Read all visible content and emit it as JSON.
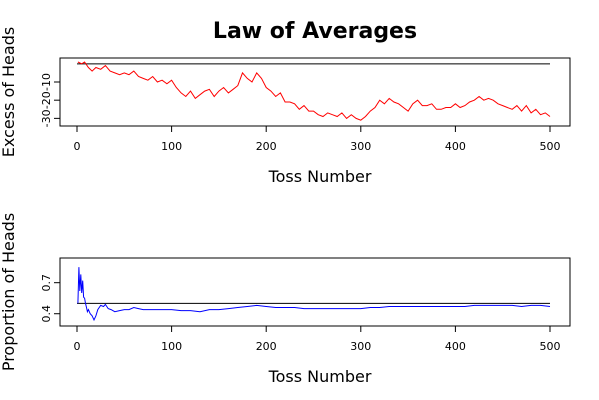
{
  "chart_data": {
    "title": "Law of Averages",
    "panels": [
      {
        "type": "line",
        "ylabel": "Excess of Heads",
        "xlabel": "Toss Number",
        "xlim": [
          0,
          500
        ],
        "ylim": [
          -32,
          1
        ],
        "xticks": [
          0,
          100,
          200,
          300,
          400,
          500
        ],
        "xtick_labels": [
          "0",
          "100",
          "200",
          "300",
          "400",
          "500"
        ],
        "yticks": [
          -30,
          -20,
          -10
        ],
        "ytick_labels": [
          "-30",
          "-20",
          "-10"
        ],
        "reference_line": {
          "y": 0,
          "color": "#000000"
        },
        "series": [
          {
            "color": "#ff0000",
            "x": [
              1,
              5,
              8,
              12,
              16,
              20,
              25,
              30,
              35,
              40,
              45,
              50,
              55,
              60,
              65,
              70,
              75,
              80,
              85,
              90,
              95,
              100,
              105,
              110,
              115,
              120,
              125,
              130,
              135,
              140,
              145,
              150,
              155,
              160,
              165,
              170,
              175,
              180,
              185,
              190,
              195,
              200,
              205,
              210,
              215,
              220,
              225,
              230,
              235,
              240,
              245,
              250,
              255,
              260,
              265,
              270,
              275,
              280,
              285,
              290,
              295,
              300,
              305,
              310,
              315,
              320,
              325,
              330,
              335,
              340,
              345,
              350,
              355,
              360,
              365,
              370,
              375,
              380,
              385,
              390,
              395,
              400,
              405,
              410,
              415,
              420,
              425,
              430,
              435,
              440,
              445,
              450,
              455,
              460,
              465,
              470,
              475,
              480,
              485,
              490,
              495,
              500
            ],
            "y": [
              1,
              0,
              1,
              -2,
              -4,
              -2,
              -3,
              -1,
              -4,
              -5,
              -6,
              -5,
              -6,
              -4,
              -7,
              -8,
              -9,
              -7,
              -10,
              -9,
              -11,
              -9,
              -13,
              -16,
              -18,
              -15,
              -19,
              -17,
              -15,
              -14,
              -18,
              -15,
              -13,
              -16,
              -14,
              -12,
              -5,
              -8,
              -10,
              -5,
              -8,
              -13,
              -15,
              -18,
              -16,
              -21,
              -21,
              -22,
              -25,
              -23,
              -26,
              -26,
              -28,
              -29,
              -27,
              -28,
              -29,
              -27,
              -30,
              -28,
              -30,
              -31,
              -29,
              -26,
              -24,
              -20,
              -22,
              -19,
              -21,
              -22,
              -24,
              -26,
              -22,
              -20,
              -23,
              -23,
              -22,
              -25,
              -25,
              -24,
              -24,
              -22,
              -24,
              -23,
              -21,
              -20,
              -18,
              -20,
              -19,
              -20,
              -22,
              -23,
              -24,
              -25,
              -23,
              -26,
              -23,
              -27,
              -25,
              -28,
              -27,
              -29
            ]
          }
        ]
      },
      {
        "type": "line",
        "ylabel": "Proportion of Heads",
        "xlabel": "Toss Number",
        "xlim": [
          0,
          500
        ],
        "ylim": [
          0.32,
          0.9
        ],
        "xticks": [
          0,
          100,
          200,
          300,
          400,
          500
        ],
        "xtick_labels": [
          "0",
          "100",
          "200",
          "300",
          "400",
          "500"
        ],
        "yticks": [
          0.4,
          0.7
        ],
        "ytick_labels": [
          "0.4",
          "0.7"
        ],
        "reference_line": {
          "y": 0.5,
          "color": "#000000"
        },
        "series": [
          {
            "color": "#0000ff",
            "x": [
              1,
              2,
              3,
              4,
              5,
              6,
              7,
              8,
              9,
              10,
              11,
              12,
              14,
              16,
              18,
              20,
              22,
              25,
              28,
              30,
              33,
              36,
              40,
              45,
              50,
              55,
              60,
              65,
              70,
              80,
              90,
              100,
              110,
              120,
              130,
              140,
              150,
              160,
              170,
              180,
              190,
              200,
              210,
              220,
              230,
              240,
              250,
              260,
              270,
              280,
              290,
              300,
              310,
              320,
              330,
              340,
              350,
              360,
              370,
              380,
              390,
              400,
              410,
              420,
              430,
              440,
              450,
              460,
              470,
              480,
              490,
              500
            ],
            "y": [
              0.5,
              0.85,
              0.62,
              0.78,
              0.6,
              0.72,
              0.56,
              0.55,
              0.5,
              0.46,
              0.42,
              0.44,
              0.4,
              0.38,
              0.34,
              0.38,
              0.44,
              0.48,
              0.47,
              0.49,
              0.45,
              0.44,
              0.42,
              0.43,
              0.44,
              0.44,
              0.46,
              0.45,
              0.44,
              0.44,
              0.44,
              0.44,
              0.43,
              0.43,
              0.42,
              0.44,
              0.44,
              0.45,
              0.46,
              0.47,
              0.48,
              0.47,
              0.46,
              0.46,
              0.46,
              0.45,
              0.45,
              0.45,
              0.45,
              0.45,
              0.45,
              0.45,
              0.46,
              0.46,
              0.47,
              0.47,
              0.47,
              0.47,
              0.47,
              0.47,
              0.47,
              0.47,
              0.47,
              0.48,
              0.48,
              0.48,
              0.48,
              0.48,
              0.47,
              0.48,
              0.48,
              0.47
            ]
          }
        ]
      }
    ]
  }
}
